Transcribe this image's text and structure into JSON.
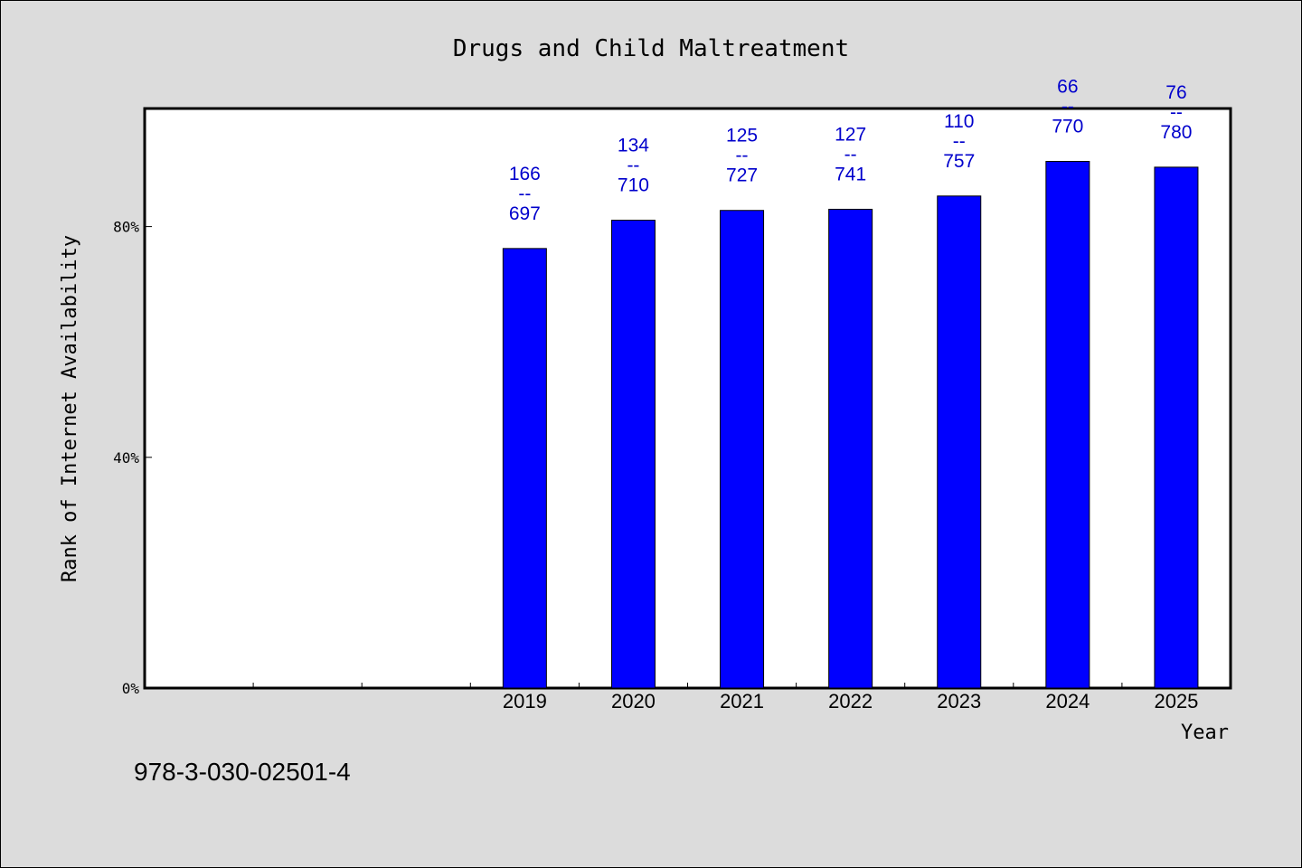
{
  "chart_data": {
    "type": "bar",
    "title": "Drugs and Child Maltreatment",
    "xlabel": "Year",
    "ylabel": "Rank of Internet Availability",
    "categories": [
      "",
      "",
      "",
      "2019",
      "2020",
      "2021",
      "2022",
      "2023",
      "2024",
      "2025"
    ],
    "values": [
      null,
      null,
      null,
      76.2,
      81.1,
      82.8,
      83.0,
      85.3,
      91.3,
      90.3
    ],
    "data_labels": [
      null,
      null,
      null,
      {
        "top": "166",
        "sep": "--",
        "bottom": "697"
      },
      {
        "top": "134",
        "sep": "--",
        "bottom": "710"
      },
      {
        "top": "125",
        "sep": "--",
        "bottom": "727"
      },
      {
        "top": "127",
        "sep": "--",
        "bottom": "741"
      },
      {
        "top": "110",
        "sep": "--",
        "bottom": "757"
      },
      {
        "top": "66",
        "sep": "--",
        "bottom": "770"
      },
      {
        "top": "76",
        "sep": "--",
        "bottom": "780"
      }
    ],
    "yticks": [
      {
        "value": 0,
        "label": "0%"
      },
      {
        "value": 40,
        "label": "40%"
      },
      {
        "value": 80,
        "label": "80%"
      }
    ],
    "ylim": [
      0,
      100.5
    ],
    "grid": false,
    "legend": "none",
    "colors": {
      "bar": "#0000ff",
      "bar_edge": "#000000",
      "data_label": "#0000cc",
      "background": "#dcdcdc",
      "plot_bg": "#ffffff"
    }
  },
  "footer": {
    "isbn": "978-3-030-02501-4"
  }
}
